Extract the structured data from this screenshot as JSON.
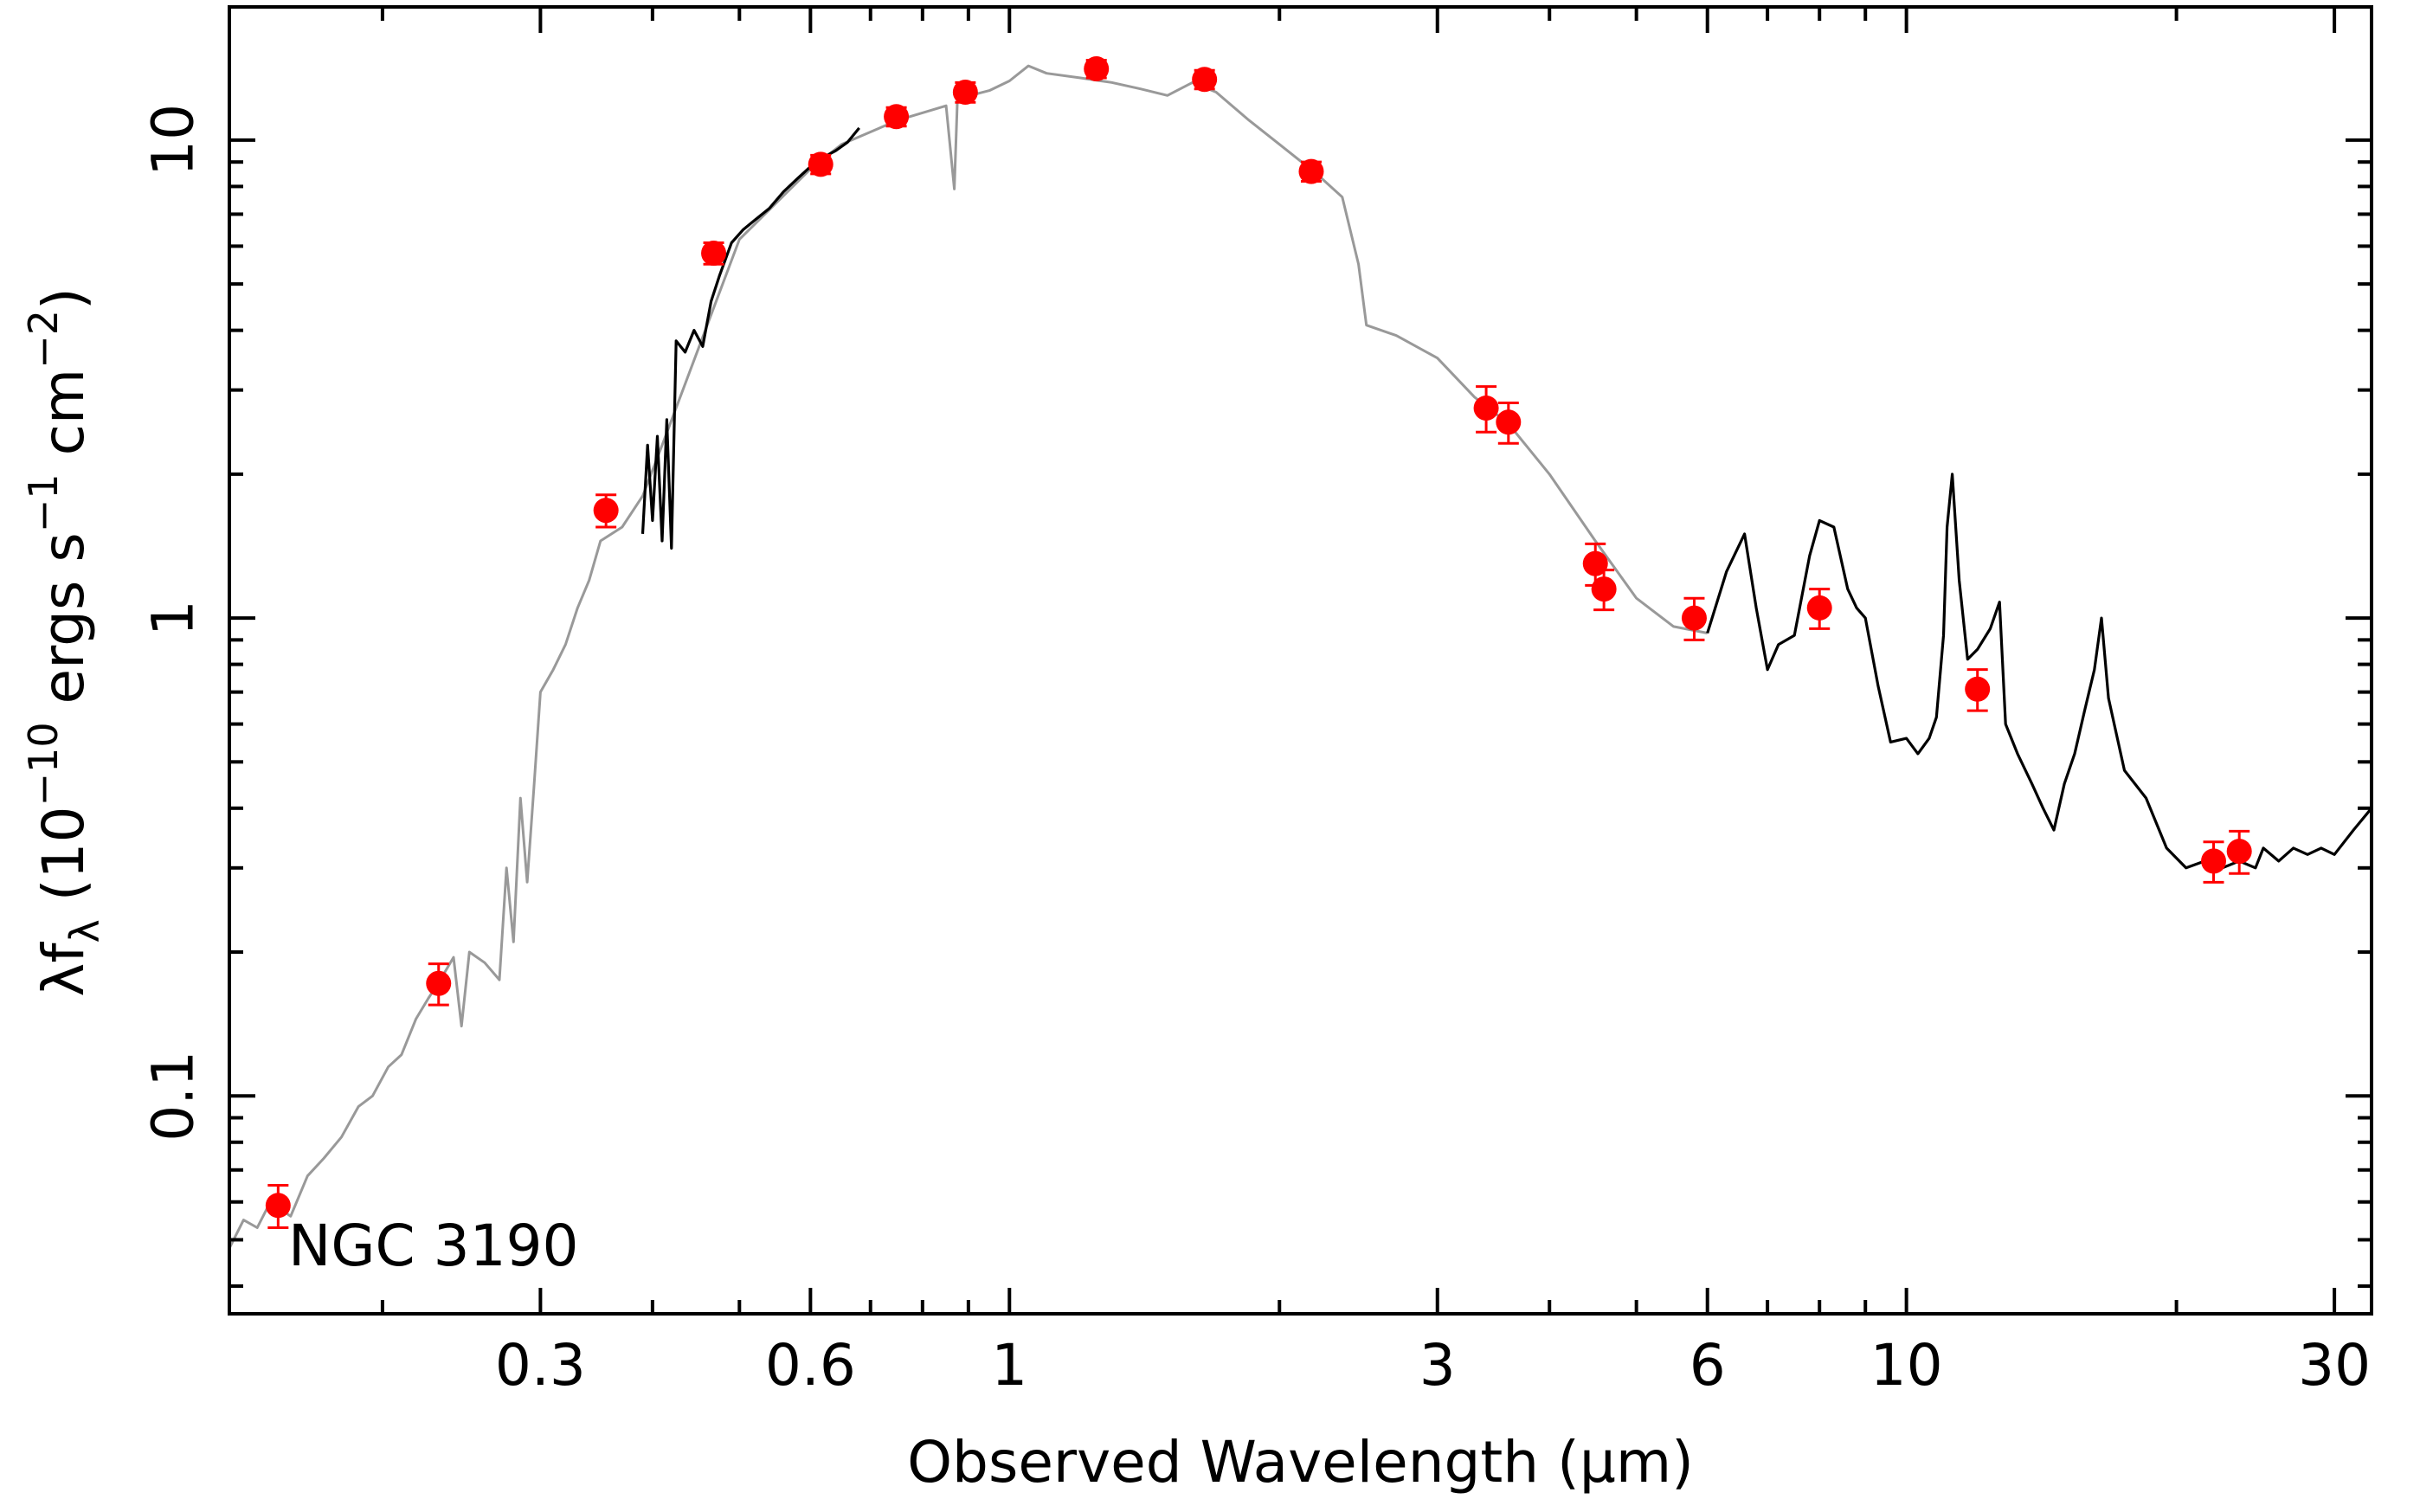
{
  "chart_data": {
    "type": "scatter",
    "object_label": "NGC 3190",
    "xlabel": "Observed Wavelength (μm)",
    "ylabel": "λf_λ (10^-10 ergs s^-1 cm^-2)",
    "ylabel_parts": {
      "lam": "λf",
      "sub": "λ",
      "open": " (10",
      "exp10": "−10",
      "ergs": " ergs s",
      "exp_s": "−1",
      "cm": " cm",
      "exp_cm": "−2",
      "close": ")"
    },
    "xscale": "log",
    "yscale": "log",
    "xlim": [
      0.135,
      33
    ],
    "ylim": [
      0.035,
      19
    ],
    "xticks": [
      {
        "value": 0.3,
        "label": "0.3"
      },
      {
        "value": 0.6,
        "label": "0.6"
      },
      {
        "value": 1,
        "label": "1"
      },
      {
        "value": 3,
        "label": "3"
      },
      {
        "value": 6,
        "label": "6"
      },
      {
        "value": 10,
        "label": "10"
      },
      {
        "value": 30,
        "label": "30"
      }
    ],
    "yticks": [
      {
        "value": 0.1,
        "label": "0.1"
      },
      {
        "value": 1,
        "label": "1"
      },
      {
        "value": 10,
        "label": "10"
      }
    ],
    "grid": false,
    "colors": {
      "points": "#ff0000",
      "model": "#999999",
      "observed": "#000000",
      "axes": "#000000"
    },
    "series": [
      {
        "kind": "photometry",
        "points": [
          {
            "x": 0.153,
            "y": 0.059,
            "err": 0.006
          },
          {
            "x": 0.231,
            "y": 0.172,
            "err": 0.017
          },
          {
            "x": 0.355,
            "y": 1.68,
            "err": 0.13
          },
          {
            "x": 0.468,
            "y": 5.8,
            "err": 0.3
          },
          {
            "x": 0.616,
            "y": 8.9,
            "err": 0.4
          },
          {
            "x": 0.748,
            "y": 11.2,
            "err": 0.5
          },
          {
            "x": 0.893,
            "y": 12.6,
            "err": 0.6
          },
          {
            "x": 1.25,
            "y": 14.1,
            "err": 0.6
          },
          {
            "x": 1.65,
            "y": 13.4,
            "err": 0.6
          },
          {
            "x": 2.17,
            "y": 8.6,
            "err": 0.4
          },
          {
            "x": 3.4,
            "y": 2.75,
            "err": 0.3
          },
          {
            "x": 3.6,
            "y": 2.57,
            "err": 0.25
          },
          {
            "x": 4.5,
            "y": 1.3,
            "err": 0.13
          },
          {
            "x": 4.6,
            "y": 1.15,
            "err": 0.11
          },
          {
            "x": 5.8,
            "y": 1.0,
            "err": 0.1
          },
          {
            "x": 8.0,
            "y": 1.05,
            "err": 0.1
          },
          {
            "x": 12.0,
            "y": 0.71,
            "err": 0.07
          },
          {
            "x": 22.0,
            "y": 0.31,
            "err": 0.03
          },
          {
            "x": 23.5,
            "y": 0.325,
            "err": 0.033
          }
        ]
      },
      {
        "kind": "model-spectrum",
        "points": [
          [
            0.135,
            0.048
          ],
          [
            0.14,
            0.055
          ],
          [
            0.145,
            0.053
          ],
          [
            0.15,
            0.06
          ],
          [
            0.158,
            0.056
          ],
          [
            0.165,
            0.068
          ],
          [
            0.172,
            0.074
          ],
          [
            0.18,
            0.082
          ],
          [
            0.188,
            0.095
          ],
          [
            0.195,
            0.1
          ],
          [
            0.203,
            0.115
          ],
          [
            0.21,
            0.122
          ],
          [
            0.218,
            0.145
          ],
          [
            0.225,
            0.16
          ],
          [
            0.232,
            0.175
          ],
          [
            0.24,
            0.195
          ],
          [
            0.245,
            0.14
          ],
          [
            0.25,
            0.2
          ],
          [
            0.26,
            0.19
          ],
          [
            0.27,
            0.175
          ],
          [
            0.275,
            0.3
          ],
          [
            0.28,
            0.21
          ],
          [
            0.285,
            0.42
          ],
          [
            0.29,
            0.28
          ],
          [
            0.295,
            0.44
          ],
          [
            0.3,
            0.7
          ],
          [
            0.31,
            0.78
          ],
          [
            0.32,
            0.88
          ],
          [
            0.33,
            1.05
          ],
          [
            0.34,
            1.2
          ],
          [
            0.35,
            1.45
          ],
          [
            0.36,
            1.5
          ],
          [
            0.37,
            1.55
          ],
          [
            0.39,
            1.8
          ],
          [
            0.41,
            2.3
          ],
          [
            0.5,
            6.2
          ],
          [
            0.6,
            8.7
          ],
          [
            0.65,
            9.8
          ],
          [
            0.75,
            11.0
          ],
          [
            0.85,
            11.8
          ],
          [
            0.868,
            7.9
          ],
          [
            0.875,
            12.2
          ],
          [
            0.95,
            12.7
          ],
          [
            1.0,
            13.3
          ],
          [
            1.05,
            14.3
          ],
          [
            1.1,
            13.8
          ],
          [
            1.2,
            13.5
          ],
          [
            1.3,
            13.2
          ],
          [
            1.4,
            12.8
          ],
          [
            1.5,
            12.4
          ],
          [
            1.6,
            13.2
          ],
          [
            1.7,
            12.6
          ],
          [
            1.85,
            11.0
          ],
          [
            2.0,
            9.8
          ],
          [
            2.2,
            8.5
          ],
          [
            2.35,
            7.6
          ],
          [
            2.45,
            5.5
          ],
          [
            2.5,
            4.1
          ],
          [
            2.7,
            3.9
          ],
          [
            3.0,
            3.5
          ],
          [
            3.3,
            2.9
          ],
          [
            3.6,
            2.55
          ],
          [
            4.0,
            2.0
          ],
          [
            4.5,
            1.45
          ],
          [
            5.0,
            1.1
          ],
          [
            5.5,
            0.96
          ],
          [
            6.0,
            0.93
          ]
        ]
      },
      {
        "kind": "observed-spectrum",
        "segments": [
          [
            [
              0.39,
              1.5
            ],
            [
              0.395,
              2.3
            ],
            [
              0.4,
              1.6
            ],
            [
              0.405,
              2.4
            ],
            [
              0.41,
              1.45
            ],
            [
              0.415,
              2.6
            ],
            [
              0.42,
              1.4
            ],
            [
              0.425,
              3.8
            ],
            [
              0.435,
              3.6
            ],
            [
              0.445,
              4.0
            ],
            [
              0.455,
              3.7
            ],
            [
              0.465,
              4.6
            ],
            [
              0.475,
              5.2
            ],
            [
              0.49,
              6.1
            ],
            [
              0.505,
              6.5
            ],
            [
              0.52,
              6.8
            ],
            [
              0.54,
              7.2
            ],
            [
              0.56,
              7.8
            ],
            [
              0.58,
              8.3
            ],
            [
              0.6,
              8.8
            ],
            [
              0.62,
              9.2
            ],
            [
              0.64,
              9.5
            ],
            [
              0.66,
              9.9
            ],
            [
              0.68,
              10.6
            ]
          ],
          [
            [
              6.0,
              0.93
            ],
            [
              6.3,
              1.25
            ],
            [
              6.6,
              1.5
            ],
            [
              6.8,
              1.05
            ],
            [
              7.0,
              0.78
            ],
            [
              7.2,
              0.88
            ],
            [
              7.5,
              0.92
            ],
            [
              7.8,
              1.35
            ],
            [
              8.0,
              1.6
            ],
            [
              8.3,
              1.55
            ],
            [
              8.6,
              1.15
            ],
            [
              8.8,
              1.05
            ],
            [
              9.0,
              1.0
            ],
            [
              9.3,
              0.72
            ],
            [
              9.6,
              0.55
            ],
            [
              10.0,
              0.56
            ],
            [
              10.3,
              0.52
            ],
            [
              10.6,
              0.56
            ],
            [
              10.8,
              0.62
            ],
            [
              11.0,
              0.92
            ],
            [
              11.1,
              1.55
            ],
            [
              11.25,
              2.0
            ],
            [
              11.45,
              1.2
            ],
            [
              11.7,
              0.82
            ],
            [
              12.0,
              0.86
            ],
            [
              12.4,
              0.95
            ],
            [
              12.7,
              1.08
            ],
            [
              12.9,
              0.6
            ],
            [
              13.3,
              0.52
            ],
            [
              13.8,
              0.45
            ],
            [
              14.2,
              0.4
            ],
            [
              14.6,
              0.36
            ],
            [
              15.0,
              0.45
            ],
            [
              15.4,
              0.52
            ],
            [
              15.8,
              0.64
            ],
            [
              16.2,
              0.78
            ],
            [
              16.5,
              1.0
            ],
            [
              16.8,
              0.68
            ],
            [
              17.5,
              0.48
            ],
            [
              18.5,
              0.42
            ],
            [
              19.5,
              0.33
            ],
            [
              20.5,
              0.3
            ],
            [
              21.5,
              0.31
            ],
            [
              22.5,
              0.3
            ],
            [
              23.5,
              0.31
            ],
            [
              24.5,
              0.3
            ],
            [
              25.0,
              0.33
            ],
            [
              26.0,
              0.31
            ],
            [
              27.0,
              0.33
            ],
            [
              28.0,
              0.32
            ],
            [
              29.0,
              0.33
            ],
            [
              30.0,
              0.32
            ],
            [
              31.5,
              0.36
            ],
            [
              33.0,
              0.4
            ]
          ]
        ]
      }
    ]
  }
}
